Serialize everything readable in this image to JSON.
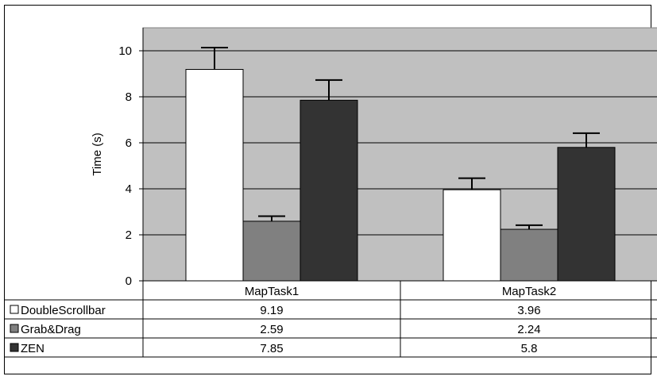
{
  "chart_data": {
    "type": "bar",
    "title": "",
    "xlabel": "",
    "ylabel": "Time (s)",
    "ylim": [
      0,
      11
    ],
    "yticks": [
      0,
      2,
      4,
      6,
      8,
      10
    ],
    "categories": [
      "MapTask1",
      "MapTask2"
    ],
    "series": [
      {
        "name": "DoubleScrollbar",
        "values": [
          9.19,
          3.96
        ],
        "errors": [
          0.95,
          0.5
        ],
        "color": "#ffffff",
        "table_values": [
          "9.19",
          "3.96"
        ]
      },
      {
        "name": "Grab&Drag",
        "values": [
          2.59,
          2.24
        ],
        "errors": [
          0.22,
          0.18
        ],
        "color": "#808080",
        "table_values": [
          "2.59",
          "2.24"
        ]
      },
      {
        "name": "ZEN",
        "values": [
          7.85,
          5.8
        ],
        "errors": [
          0.88,
          0.62
        ],
        "color": "#333333",
        "table_values": [
          "7.85",
          "5.8"
        ]
      }
    ],
    "plot_background": "#c0c0c0",
    "grid": true,
    "legend": "data-table"
  }
}
